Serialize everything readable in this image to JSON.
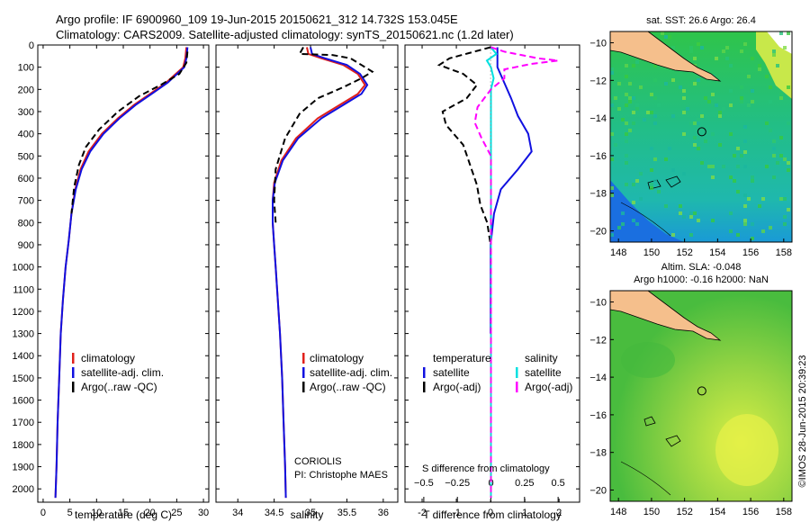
{
  "header": {
    "line1": "Argo profile: IF 6900960_109 19-Jun-2015 20150621_312 14.732S 153.045E",
    "line2": "Climatology: CARS2009. Satellite-adjusted climatology: synTS_20150621.nc (1.2d later)"
  },
  "colors": {
    "climatology": "#e0201b",
    "satellite": "#1010e0",
    "argo": "#000000",
    "sal_satellite": "#00e0e0",
    "sal_argo": "#ff00ff",
    "land": "#f5bf8c"
  },
  "chart_data": [
    {
      "id": "temperature",
      "type": "line",
      "xlabel": "temperature (deg C)",
      "xlim": [
        -1,
        31
      ],
      "xticks": [
        0,
        5,
        10,
        15,
        20,
        25,
        30
      ],
      "ylim": [
        0,
        2060
      ],
      "yticks": [
        0,
        100,
        200,
        300,
        400,
        500,
        600,
        700,
        800,
        900,
        1000,
        1100,
        1200,
        1300,
        1400,
        1500,
        1600,
        1700,
        1800,
        1900,
        2000
      ],
      "legend": {
        "position": "lower-left",
        "entries": [
          "climatology",
          "satellite-adj. clim.",
          "Argo(..raw -QC)"
        ]
      },
      "series": [
        {
          "name": "climatology",
          "color": "#e0201b",
          "dash": "solid",
          "points": [
            [
              26.8,
              10
            ],
            [
              26.6,
              60
            ],
            [
              26.2,
              100
            ],
            [
              23,
              170
            ],
            [
              20,
              220
            ],
            [
              17,
              270
            ],
            [
              14,
              330
            ],
            [
              11,
              400
            ],
            [
              8.5,
              480
            ],
            [
              7,
              560
            ],
            [
              6,
              650
            ],
            [
              5.3,
              760
            ],
            [
              4.8,
              880
            ],
            [
              4.2,
              1000
            ],
            [
              3.7,
              1150
            ],
            [
              3.3,
              1300
            ],
            [
              3,
              1500
            ],
            [
              2.7,
              1700
            ],
            [
              2.5,
              1900
            ],
            [
              2.3,
              2040
            ]
          ]
        },
        {
          "name": "satellite-adj. clim.",
          "color": "#1010e0",
          "dash": "solid",
          "points": [
            [
              27,
              10
            ],
            [
              26.8,
              60
            ],
            [
              26.4,
              100
            ],
            [
              23.3,
              170
            ],
            [
              20.3,
              220
            ],
            [
              17.3,
              270
            ],
            [
              14.3,
              330
            ],
            [
              11.3,
              400
            ],
            [
              8.8,
              480
            ],
            [
              7.2,
              560
            ],
            [
              6.1,
              650
            ],
            [
              5.3,
              760
            ],
            [
              4.8,
              880
            ],
            [
              4.2,
              1000
            ],
            [
              3.7,
              1150
            ],
            [
              3.3,
              1300
            ],
            [
              3,
              1500
            ],
            [
              2.7,
              1700
            ],
            [
              2.5,
              1900
            ],
            [
              2.3,
              2040
            ]
          ]
        },
        {
          "name": "Argo(..raw -QC)",
          "color": "#000000",
          "dash": "dashed",
          "points": [
            [
              27,
              30
            ],
            [
              26.8,
              80
            ],
            [
              25.5,
              130
            ],
            [
              22,
              180
            ],
            [
              18,
              230
            ],
            [
              14,
              300
            ],
            [
              10.5,
              380
            ],
            [
              8,
              460
            ],
            [
              6.7,
              540
            ],
            [
              5.8,
              640
            ],
            [
              5.3,
              760
            ]
          ]
        }
      ]
    },
    {
      "id": "salinity",
      "type": "line",
      "xlabel": "salinity",
      "xlim": [
        33.7,
        36.2
      ],
      "xticks": [
        34,
        34.5,
        35,
        35.5,
        36
      ],
      "ylim": [
        0,
        2060
      ],
      "legend": {
        "position": "lower-left",
        "entries": [
          "climatology",
          "satellite-adj. clim.",
          "Argo(..raw -QC)"
        ]
      },
      "annotation": [
        "CORIOLIS",
        "PI: Christophe MAES"
      ],
      "series": [
        {
          "name": "climatology",
          "color": "#e0201b",
          "dash": "solid",
          "points": [
            [
              34.95,
              10
            ],
            [
              34.97,
              40
            ],
            [
              35.15,
              60
            ],
            [
              35.45,
              90
            ],
            [
              35.65,
              130
            ],
            [
              35.75,
              180
            ],
            [
              35.65,
              220
            ],
            [
              35.4,
              270
            ],
            [
              35.1,
              330
            ],
            [
              34.8,
              420
            ],
            [
              34.6,
              520
            ],
            [
              34.5,
              620
            ],
            [
              34.48,
              700
            ],
            [
              34.48,
              800
            ],
            [
              34.5,
              900
            ],
            [
              34.52,
              1000
            ],
            [
              34.55,
              1150
            ],
            [
              34.58,
              1300
            ],
            [
              34.61,
              1500
            ],
            [
              34.63,
              1700
            ],
            [
              34.65,
              1900
            ],
            [
              34.66,
              2040
            ]
          ]
        },
        {
          "name": "satellite-adj. clim.",
          "color": "#1010e0",
          "dash": "solid",
          "points": [
            [
              35,
              10
            ],
            [
              35.02,
              40
            ],
            [
              35.2,
              60
            ],
            [
              35.5,
              90
            ],
            [
              35.68,
              130
            ],
            [
              35.78,
              180
            ],
            [
              35.7,
              220
            ],
            [
              35.45,
              270
            ],
            [
              35.15,
              330
            ],
            [
              34.83,
              420
            ],
            [
              34.62,
              520
            ],
            [
              34.51,
              620
            ],
            [
              34.48,
              700
            ],
            [
              34.48,
              800
            ],
            [
              34.5,
              900
            ],
            [
              34.52,
              1000
            ],
            [
              34.55,
              1150
            ],
            [
              34.58,
              1300
            ],
            [
              34.61,
              1500
            ],
            [
              34.63,
              1700
            ],
            [
              34.65,
              1900
            ],
            [
              34.66,
              2040
            ]
          ]
        },
        {
          "name": "Argo(..raw -QC)",
          "color": "#000000",
          "dash": "dashed",
          "points": [
            [
              34.9,
              10
            ],
            [
              34.85,
              40
            ],
            [
              35.3,
              45
            ],
            [
              35.55,
              60
            ],
            [
              35.7,
              90
            ],
            [
              35.85,
              120
            ],
            [
              35.7,
              150
            ],
            [
              35.45,
              190
            ],
            [
              35.1,
              240
            ],
            [
              34.85,
              310
            ],
            [
              34.65,
              420
            ],
            [
              34.52,
              560
            ],
            [
              34.5,
              700
            ],
            [
              34.52,
              800
            ]
          ]
        }
      ]
    },
    {
      "id": "difference",
      "type": "line",
      "xlabel": "T difference from climatology",
      "xlabel2": "S difference from climatology",
      "xlim": [
        -2.5,
        2.6
      ],
      "xticks": [
        -2,
        -1,
        0,
        1,
        2
      ],
      "sticks": [
        -0.5,
        -0.25,
        0,
        0.25,
        0.5
      ],
      "sticks_label": [
        "−0.5",
        "−0.25",
        "0",
        "0.25",
        "0.5"
      ],
      "slim": [
        -0.64,
        0.66
      ],
      "ylim": [
        0,
        2060
      ],
      "legend": {
        "position": "lower-left",
        "headers": [
          "temperature",
          "salinity"
        ],
        "entries": [
          "satellite",
          "Argo(-adj)",
          "satellite",
          "Argo(-adj)"
        ]
      },
      "series": [
        {
          "name": "T satellite",
          "color": "#1010e0",
          "dash": "solid",
          "scale": "T",
          "points": [
            [
              0.2,
              10
            ],
            [
              0.2,
              60
            ],
            [
              0.2,
              100
            ],
            [
              0.4,
              170
            ],
            [
              0.6,
              240
            ],
            [
              0.8,
              320
            ],
            [
              1.1,
              400
            ],
            [
              1.2,
              480
            ],
            [
              0.8,
              560
            ],
            [
              0.3,
              650
            ],
            [
              0.1,
              760
            ],
            [
              0,
              900
            ],
            [
              0,
              1300
            ]
          ]
        },
        {
          "name": "T Argo(-adj)",
          "color": "#000000",
          "dash": "dashed",
          "scale": "T",
          "points": [
            [
              0,
              10
            ],
            [
              -1.2,
              60
            ],
            [
              -1.5,
              90
            ],
            [
              -0.8,
              130
            ],
            [
              -0.4,
              180
            ],
            [
              -0.7,
              240
            ],
            [
              -1.4,
              300
            ],
            [
              -1.3,
              360
            ],
            [
              -0.8,
              450
            ],
            [
              -0.6,
              540
            ],
            [
              -0.4,
              630
            ],
            [
              -0.3,
              720
            ],
            [
              -0.1,
              800
            ],
            [
              0,
              900
            ]
          ]
        },
        {
          "name": "S satellite",
          "color": "#00e0e0",
          "dash": "solid",
          "scale": "S",
          "points": [
            [
              0,
              10
            ],
            [
              0.04,
              40
            ],
            [
              -0.03,
              70
            ],
            [
              0,
              100
            ],
            [
              0.02,
              150
            ],
            [
              0,
              200
            ],
            [
              0,
              400
            ],
            [
              0,
              900
            ],
            [
              0,
              2040
            ]
          ]
        },
        {
          "name": "S Argo(-adj)",
          "color": "#ff00ff",
          "dash": "dashed",
          "scale": "S",
          "points": [
            [
              0,
              10
            ],
            [
              0.1,
              30
            ],
            [
              0.35,
              60
            ],
            [
              0.5,
              70
            ],
            [
              0.3,
              85
            ],
            [
              0.1,
              110
            ],
            [
              0.1,
              150
            ],
            [
              0,
              200
            ],
            [
              -0.1,
              280
            ],
            [
              -0.12,
              350
            ],
            [
              -0.07,
              420
            ],
            [
              0,
              500
            ],
            [
              0,
              700
            ],
            [
              0,
              2040
            ]
          ]
        }
      ]
    },
    {
      "id": "sst_map",
      "type": "heatmap",
      "title": "sat. SST: 26.6  Argo: 26.4",
      "xticks": [
        148,
        150,
        152,
        154,
        156,
        158
      ],
      "xlim": [
        147.5,
        158.5
      ],
      "yticks": [
        -10,
        -12,
        -14,
        -16,
        -18,
        -20
      ],
      "ylim": [
        -20.6,
        -9.4
      ],
      "marker": {
        "lon": 153.045,
        "lat": -14.732
      }
    },
    {
      "id": "sla_map",
      "type": "heatmap",
      "title": "Altim. SLA: -0.048",
      "subtitle": "Argo h1000: -0.16 h2000: NaN",
      "xticks": [
        148,
        150,
        152,
        154,
        156,
        158
      ],
      "xlim": [
        147.5,
        158.5
      ],
      "yticks": [
        -10,
        -12,
        -14,
        -16,
        -18,
        -20
      ],
      "ylim": [
        -20.6,
        -9.4
      ],
      "marker": {
        "lon": 153.045,
        "lat": -14.732
      }
    }
  ],
  "side_label": "©IMOS 28-Jun-2015 20:39:23"
}
